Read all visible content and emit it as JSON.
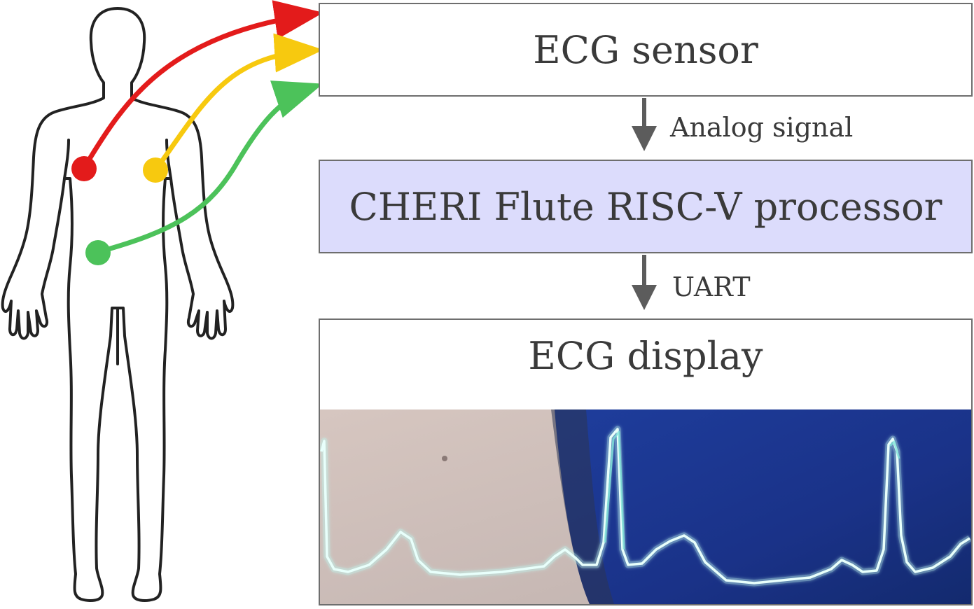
{
  "diagram": {
    "nodes": {
      "sensor": {
        "label": "ECG sensor"
      },
      "processor": {
        "label": "CHERI Flute RISC-V processor"
      },
      "display": {
        "label": "ECG display"
      }
    },
    "edges": {
      "sensor_to_processor": {
        "label": "Analog signal"
      },
      "processor_to_display": {
        "label": "UART"
      }
    },
    "electrodes": [
      {
        "id": "right-chest",
        "color": "#e31b1b"
      },
      {
        "id": "left-chest",
        "color": "#f7c90f"
      },
      {
        "id": "abdomen",
        "color": "#4cc25a"
      }
    ],
    "colors": {
      "box_border": "#6e6e6e",
      "processor_fill": "#dcdcfc",
      "arrow": "#5c5c5c",
      "screen_left": "#cdbcb6",
      "screen_right": "#1b3590",
      "trace": "#bff7f0"
    }
  }
}
